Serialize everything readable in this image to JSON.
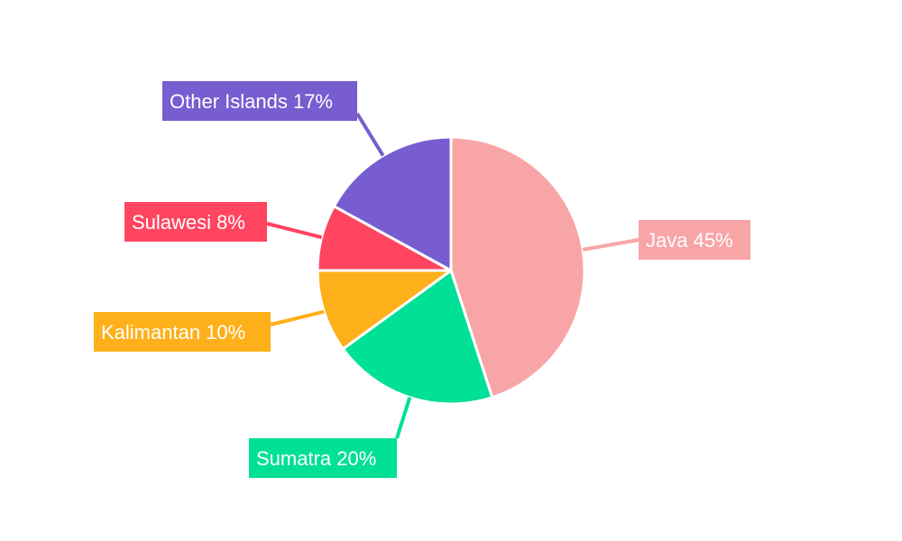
{
  "chart_data": {
    "type": "pie",
    "title": "",
    "categories": [
      "Java",
      "Sumatra",
      "Kalimantan",
      "Sulawesi",
      "Other Islands"
    ],
    "values": [
      45,
      20,
      10,
      8,
      17
    ],
    "unit": "%",
    "slice_colors": [
      "#f8a5a7",
      "#00e096",
      "#feb01a",
      "#ff4560",
      "#775dd0"
    ],
    "start_angle_deg": 0,
    "direction": "clockwise",
    "legend": "none",
    "labels": [
      "Java 45%",
      "Sumatra 20%",
      "Kalimantan 10%",
      "Sulawesi 8%",
      "Other Islands 17%"
    ]
  }
}
